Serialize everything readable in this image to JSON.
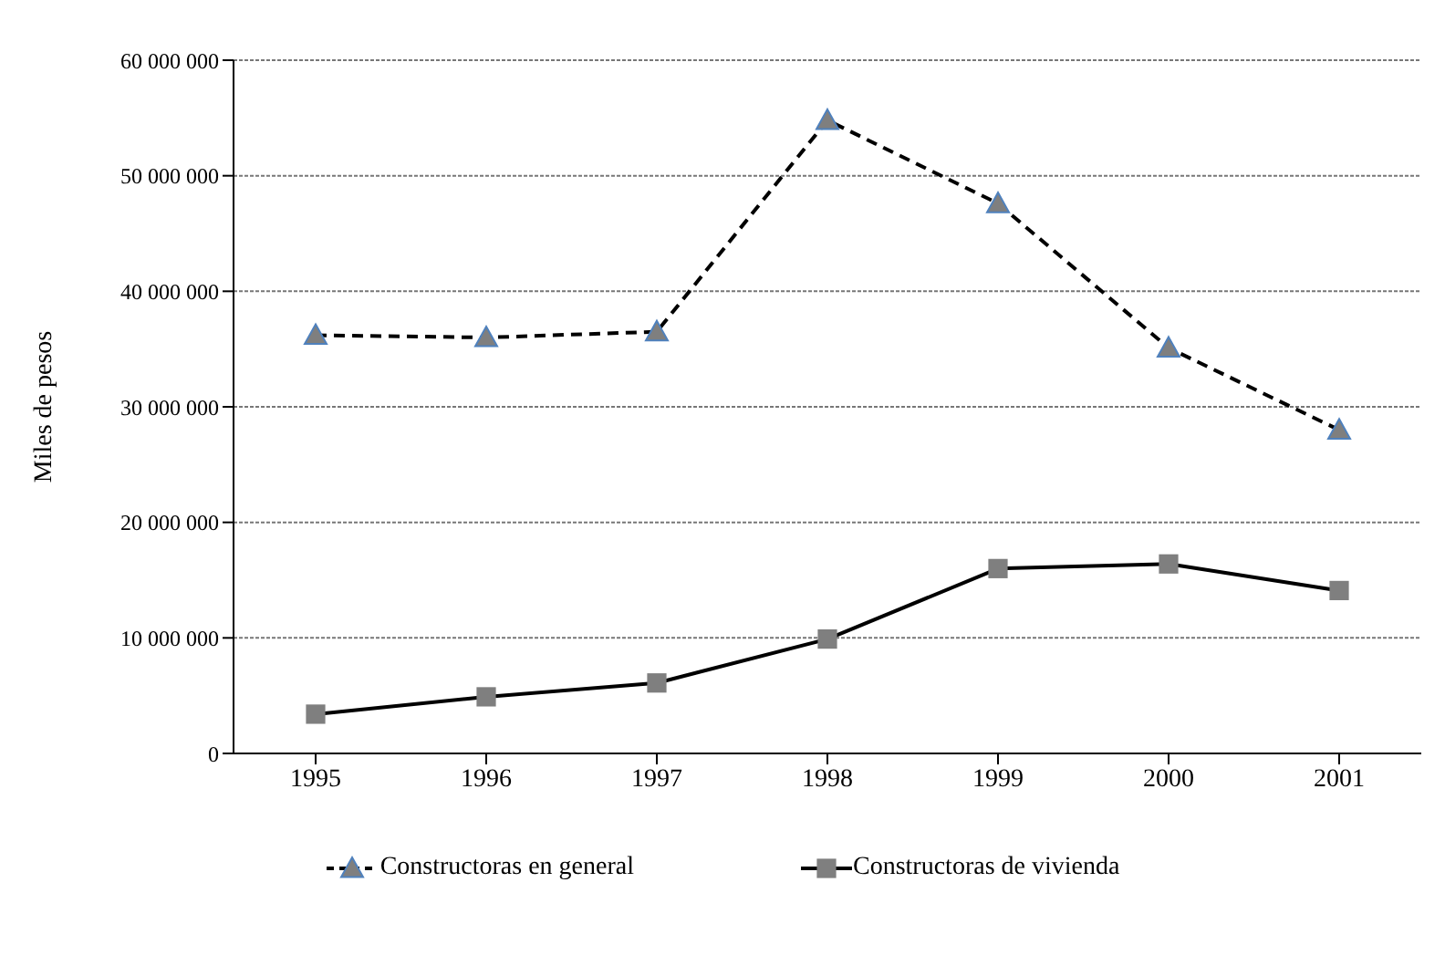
{
  "chart_data": {
    "type": "line",
    "ylabel": "Miles de pesos",
    "categories": [
      "1995",
      "1996",
      "1997",
      "1998",
      "1999",
      "2000",
      "2001"
    ],
    "series": [
      {
        "name": "Constructoras en general",
        "color": "#000000",
        "marker": "triangle",
        "line_style": "dashed",
        "values": [
          36200000,
          36000000,
          36500000,
          54800000,
          47600000,
          35100000,
          28000000
        ]
      },
      {
        "name": "Constructoras de vivienda",
        "color": "#000000",
        "marker": "square",
        "line_style": "solid",
        "values": [
          3400000,
          4900000,
          6100000,
          9900000,
          16000000,
          16400000,
          14100000
        ]
      }
    ],
    "ylim": [
      0,
      60000000
    ],
    "yticks": [
      {
        "value": 0,
        "label": "0"
      },
      {
        "value": 10000000,
        "label": "10 000 000"
      },
      {
        "value": 20000000,
        "label": "20 000 000"
      },
      {
        "value": 30000000,
        "label": "30 000 000"
      },
      {
        "value": 40000000,
        "label": "40 000 000"
      },
      {
        "value": 50000000,
        "label": "50 000 000"
      },
      {
        "value": 60000000,
        "label": "60 000 000"
      }
    ],
    "grid": "y",
    "legend": "bottom"
  }
}
